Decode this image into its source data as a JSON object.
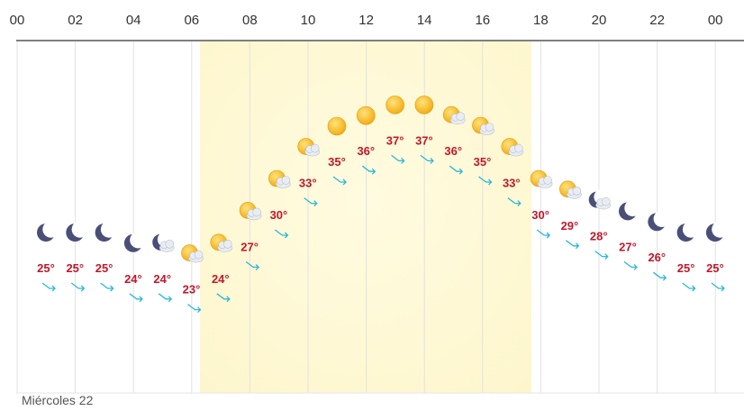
{
  "chart_data": {
    "type": "line",
    "hour_labels": [
      "00",
      "02",
      "04",
      "06",
      "08",
      "10",
      "12",
      "14",
      "16",
      "18",
      "20",
      "22",
      "00"
    ],
    "points": [
      {
        "hour": 0,
        "temp": 25,
        "icon": "moon-icon",
        "wind": "wind-arrow-icon"
      },
      {
        "hour": 1,
        "temp": 25,
        "icon": "moon-icon",
        "wind": "wind-arrow-icon"
      },
      {
        "hour": 2,
        "temp": 25,
        "icon": "moon-icon",
        "wind": "wind-arrow-icon"
      },
      {
        "hour": 3,
        "temp": 24,
        "icon": "moon-icon",
        "wind": "wind-arrow-icon"
      },
      {
        "hour": 4,
        "temp": 24,
        "icon": "moon-cloud-icon",
        "wind": "wind-arrow-icon"
      },
      {
        "hour": 5,
        "temp": 23,
        "icon": "sun-cloud-icon",
        "wind": "wind-arrow-icon"
      },
      {
        "hour": 6,
        "temp": 24,
        "icon": "sun-cloud-icon",
        "wind": "wind-arrow-icon"
      },
      {
        "hour": 7,
        "temp": 27,
        "icon": "sun-cloud-icon",
        "wind": "wind-arrow-icon"
      },
      {
        "hour": 8,
        "temp": 30,
        "icon": "sun-cloud-icon",
        "wind": "wind-arrow-icon"
      },
      {
        "hour": 9,
        "temp": 33,
        "icon": "sun-cloud-icon",
        "wind": "wind-arrow-icon"
      },
      {
        "hour": 10,
        "temp": 35,
        "icon": "sun-icon",
        "wind": "wind-arrow-icon"
      },
      {
        "hour": 11,
        "temp": 36,
        "icon": "sun-icon",
        "wind": "wind-arrow-icon"
      },
      {
        "hour": 12,
        "temp": 37,
        "icon": "sun-icon",
        "wind": "wind-arrow-icon"
      },
      {
        "hour": 13,
        "temp": 37,
        "icon": "sun-icon",
        "wind": "wind-arrow-icon"
      },
      {
        "hour": 14,
        "temp": 36,
        "icon": "sun-cloud-icon",
        "wind": "wind-arrow-icon"
      },
      {
        "hour": 15,
        "temp": 35,
        "icon": "sun-cloud-icon",
        "wind": "wind-arrow-icon"
      },
      {
        "hour": 16,
        "temp": 33,
        "icon": "sun-cloud-icon",
        "wind": "wind-arrow-icon"
      },
      {
        "hour": 17,
        "temp": 30,
        "icon": "sun-cloud-icon",
        "wind": "wind-arrow-icon"
      },
      {
        "hour": 18,
        "temp": 29,
        "icon": "sun-cloud-icon",
        "wind": "wind-arrow-icon"
      },
      {
        "hour": 19,
        "temp": 28,
        "icon": "moon-cloud-icon",
        "wind": "wind-arrow-icon"
      },
      {
        "hour": 20,
        "temp": 27,
        "icon": "moon-icon",
        "wind": "wind-arrow-icon"
      },
      {
        "hour": 21,
        "temp": 26,
        "icon": "moon-icon",
        "wind": "wind-arrow-icon"
      },
      {
        "hour": 22,
        "temp": 25,
        "icon": "moon-icon",
        "wind": "wind-arrow-icon"
      },
      {
        "hour": 23,
        "temp": 25,
        "icon": "moon-icon",
        "wind": "wind-arrow-icon"
      }
    ],
    "temp_unit": "°",
    "day_label": "Miércoles 22",
    "grid": true,
    "colors": {
      "temp_text": "#c0182a",
      "wind_arrow": "#2ab8d6",
      "moon": "#4a4f78",
      "sun": "#f6b81a",
      "cloud": "#cfd6e0",
      "daylight": "#fdf8d4",
      "grid": "#e2e2e2"
    }
  }
}
